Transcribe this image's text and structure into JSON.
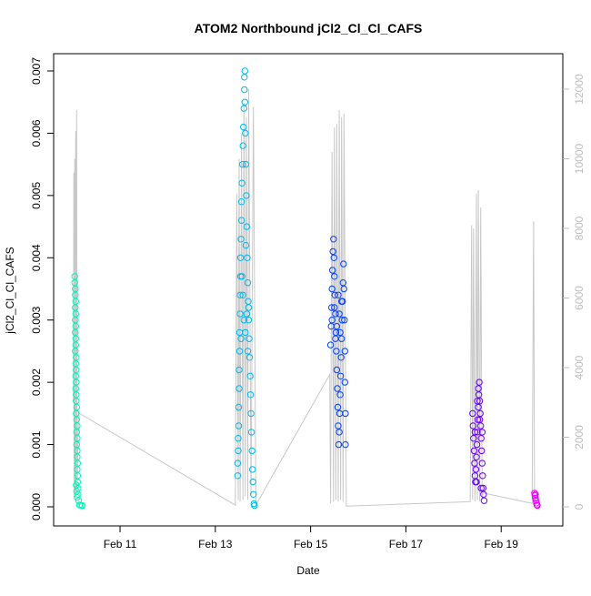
{
  "chart_data": {
    "type": "scatter",
    "title": "ATOM2 Northbound jCl2_Cl_Cl_CAFS",
    "xlabel": "Date",
    "ylabel": "jCl2_Cl_Cl_CAFS",
    "x_unit": "days since Feb 9 00:00 (axis printed as dates)",
    "xlim": [
      9.95,
      19.95
    ],
    "ylim": [
      0.0,
      0.007
    ],
    "y2lim": [
      0,
      12000
    ],
    "x_ticks": [
      {
        "x": 11,
        "label": "Feb 11"
      },
      {
        "x": 13,
        "label": "Feb 13"
      },
      {
        "x": 15,
        "label": "Feb 15"
      },
      {
        "x": 17,
        "label": "Feb 17"
      },
      {
        "x": 19,
        "label": "Feb 19"
      }
    ],
    "y_ticks": [
      {
        "value": 0.0,
        "label": "0.000"
      },
      {
        "value": 0.001,
        "label": "0.001"
      },
      {
        "value": 0.002,
        "label": "0.002"
      },
      {
        "value": 0.003,
        "label": "0.003"
      },
      {
        "value": 0.004,
        "label": "0.004"
      },
      {
        "value": 0.005,
        "label": "0.005"
      },
      {
        "value": 0.006,
        "label": "0.006"
      },
      {
        "value": 0.007,
        "label": "0.007"
      }
    ],
    "y2_ticks": [
      {
        "value": 0,
        "label": "0"
      },
      {
        "value": 2000,
        "label": "2000"
      },
      {
        "value": 4000,
        "label": "4000"
      },
      {
        "value": 6000,
        "label": "6000"
      },
      {
        "value": 8000,
        "label": "8000"
      },
      {
        "value": 10000,
        "label": "10000"
      },
      {
        "value": 12000,
        "label": "12000"
      }
    ],
    "grid": false,
    "series": [
      {
        "color": "#00f5b8",
        "points": [
          [
            10.05,
            0.0037
          ],
          [
            10.05,
            0.0036
          ],
          [
            10.06,
            0.0035
          ],
          [
            10.06,
            0.0034
          ],
          [
            10.07,
            0.0033
          ],
          [
            10.06,
            0.0032
          ],
          [
            10.07,
            0.0031
          ],
          [
            10.06,
            0.003
          ],
          [
            10.07,
            0.0029
          ],
          [
            10.06,
            0.0028
          ],
          [
            10.07,
            0.0027
          ],
          [
            10.07,
            0.0026
          ],
          [
            10.06,
            0.0025
          ],
          [
            10.08,
            0.0024
          ],
          [
            10.07,
            0.0023
          ],
          [
            10.08,
            0.0022
          ],
          [
            10.07,
            0.0021
          ],
          [
            10.08,
            0.002
          ],
          [
            10.07,
            0.0019
          ],
          [
            10.08,
            0.0018
          ],
          [
            10.08,
            0.0017
          ],
          [
            10.09,
            0.0016
          ],
          [
            10.08,
            0.0015
          ],
          [
            10.09,
            0.0014
          ],
          [
            10.1,
            0.0013
          ],
          [
            10.09,
            0.0012
          ],
          [
            10.1,
            0.0011
          ],
          [
            10.09,
            0.001
          ],
          [
            10.1,
            0.0009
          ],
          [
            10.1,
            0.0008
          ],
          [
            10.11,
            0.0007
          ],
          [
            10.1,
            0.0006
          ],
          [
            10.11,
            0.0005
          ],
          [
            10.11,
            0.0004
          ],
          [
            10.12,
            0.0003
          ],
          [
            10.12,
            0.0002
          ],
          [
            10.13,
            0.0001
          ],
          [
            10.15,
            3e-05
          ],
          [
            10.18,
            2e-05
          ],
          [
            10.21,
            2e-05
          ],
          [
            10.08,
            0.00035
          ],
          [
            10.09,
            0.00025
          ],
          [
            10.1,
            0.00015
          ]
        ]
      },
      {
        "color": "#00b8f0",
        "points": [
          [
            13.47,
            0.0005
          ],
          [
            13.47,
            0.0007
          ],
          [
            13.48,
            0.0009
          ],
          [
            13.48,
            0.0011
          ],
          [
            13.49,
            0.0013
          ],
          [
            13.49,
            0.0016
          ],
          [
            13.5,
            0.0019
          ],
          [
            13.5,
            0.0022
          ],
          [
            13.51,
            0.0025
          ],
          [
            13.51,
            0.0028
          ],
          [
            13.52,
            0.0031
          ],
          [
            13.52,
            0.0034
          ],
          [
            13.53,
            0.0037
          ],
          [
            13.53,
            0.004
          ],
          [
            13.54,
            0.0043
          ],
          [
            13.55,
            0.0046
          ],
          [
            13.55,
            0.0049
          ],
          [
            13.56,
            0.0052
          ],
          [
            13.57,
            0.0055
          ],
          [
            13.58,
            0.0058
          ],
          [
            13.59,
            0.0061
          ],
          [
            13.6,
            0.0064
          ],
          [
            13.61,
            0.0067
          ],
          [
            13.62,
            0.007
          ],
          [
            13.61,
            0.0069
          ],
          [
            13.62,
            0.0065
          ],
          [
            13.63,
            0.006
          ],
          [
            13.64,
            0.0055
          ],
          [
            13.65,
            0.005
          ],
          [
            13.66,
            0.0045
          ],
          [
            13.67,
            0.004
          ],
          [
            13.68,
            0.0036
          ],
          [
            13.69,
            0.0033
          ],
          [
            13.7,
            0.003
          ],
          [
            13.71,
            0.0027
          ],
          [
            13.72,
            0.0024
          ],
          [
            13.73,
            0.0021
          ],
          [
            13.74,
            0.0018
          ],
          [
            13.75,
            0.0015
          ],
          [
            13.76,
            0.0012
          ],
          [
            13.77,
            0.0009
          ],
          [
            13.78,
            0.0006
          ],
          [
            13.79,
            0.0004
          ],
          [
            13.8,
            0.0002
          ],
          [
            13.81,
            5e-05
          ],
          [
            13.82,
            2e-05
          ],
          [
            13.6,
            0.003
          ],
          [
            13.58,
            0.0034
          ],
          [
            13.63,
            0.0028
          ],
          [
            13.66,
            0.0031
          ],
          [
            13.7,
            0.0032
          ],
          [
            13.56,
            0.0037
          ],
          [
            13.54,
            0.0027
          ],
          [
            13.64,
            0.0042
          ],
          [
            13.68,
            0.0025
          ]
        ]
      },
      {
        "color": "#0040ff",
        "points": [
          [
            15.42,
            0.0026
          ],
          [
            15.43,
            0.0029
          ],
          [
            15.44,
            0.0032
          ],
          [
            15.45,
            0.0035
          ],
          [
            15.46,
            0.0038
          ],
          [
            15.47,
            0.0041
          ],
          [
            15.48,
            0.0043
          ],
          [
            15.49,
            0.004
          ],
          [
            15.5,
            0.0037
          ],
          [
            15.51,
            0.0034
          ],
          [
            15.52,
            0.0031
          ],
          [
            15.53,
            0.0028
          ],
          [
            15.54,
            0.0025
          ],
          [
            15.55,
            0.0022
          ],
          [
            15.56,
            0.0019
          ],
          [
            15.57,
            0.0016
          ],
          [
            15.58,
            0.0013
          ],
          [
            15.59,
            0.001
          ],
          [
            15.6,
            0.0012
          ],
          [
            15.61,
            0.0015
          ],
          [
            15.62,
            0.0018
          ],
          [
            15.63,
            0.0021
          ],
          [
            15.64,
            0.0024
          ],
          [
            15.65,
            0.0027
          ],
          [
            15.66,
            0.003
          ],
          [
            15.67,
            0.0033
          ],
          [
            15.68,
            0.0036
          ],
          [
            15.69,
            0.0039
          ],
          [
            15.7,
            0.0035
          ],
          [
            15.71,
            0.003
          ],
          [
            15.72,
            0.0025
          ],
          [
            15.72,
            0.002
          ],
          [
            15.73,
            0.0015
          ],
          [
            15.73,
            0.001
          ],
          [
            15.45,
            0.003
          ],
          [
            15.5,
            0.0032
          ],
          [
            15.55,
            0.0029
          ],
          [
            15.6,
            0.0031
          ],
          [
            15.65,
            0.0033
          ],
          [
            15.52,
            0.0027
          ],
          [
            15.58,
            0.0034
          ],
          [
            15.62,
            0.0028
          ]
        ]
      },
      {
        "color": "#6600ff",
        "points": [
          [
            18.4,
            0.0015
          ],
          [
            18.41,
            0.0013
          ],
          [
            18.42,
            0.0011
          ],
          [
            18.43,
            0.0009
          ],
          [
            18.44,
            0.0007
          ],
          [
            18.45,
            0.0005
          ],
          [
            18.46,
            0.0004
          ],
          [
            18.47,
            0.0006
          ],
          [
            18.48,
            0.0008
          ],
          [
            18.49,
            0.001
          ],
          [
            18.5,
            0.0012
          ],
          [
            18.51,
            0.0014
          ],
          [
            18.52,
            0.0016
          ],
          [
            18.53,
            0.0018
          ],
          [
            18.54,
            0.002
          ],
          [
            18.52,
            0.0019
          ],
          [
            18.55,
            0.0017
          ],
          [
            18.56,
            0.0015
          ],
          [
            18.57,
            0.0013
          ],
          [
            18.58,
            0.0011
          ],
          [
            18.59,
            0.0009
          ],
          [
            18.6,
            0.0007
          ],
          [
            18.61,
            0.0005
          ],
          [
            18.62,
            0.0003
          ],
          [
            18.63,
            0.0002
          ],
          [
            18.64,
            0.0001
          ],
          [
            18.45,
            0.0012
          ],
          [
            18.5,
            0.0017
          ],
          [
            18.55,
            0.0014
          ],
          [
            18.6,
            0.0012
          ],
          [
            18.48,
            0.0004
          ],
          [
            18.58,
            0.0003
          ]
        ]
      },
      {
        "color": "#ee00ff",
        "points": [
          [
            19.7,
            0.00022
          ],
          [
            19.71,
            0.00018
          ],
          [
            19.72,
            0.00014
          ],
          [
            19.73,
            0.0001
          ],
          [
            19.74,
            6e-05
          ],
          [
            19.75,
            3e-05
          ],
          [
            19.76,
            2e-05
          ],
          [
            19.72,
            0.0002
          ]
        ]
      }
    ],
    "secondary_line": {
      "color": "#c8c8c8",
      "axis": "right",
      "points": [
        [
          10.02,
          3000
        ],
        [
          10.03,
          9600
        ],
        [
          10.04,
          300
        ],
        [
          10.05,
          10000
        ],
        [
          10.06,
          200
        ],
        [
          10.07,
          10800
        ],
        [
          10.08,
          500
        ],
        [
          10.09,
          11400
        ],
        [
          10.1,
          400
        ],
        [
          10.13,
          2700
        ],
        [
          13.42,
          50
        ],
        [
          13.45,
          9000
        ],
        [
          13.48,
          200
        ],
        [
          13.5,
          10000
        ],
        [
          13.52,
          150
        ],
        [
          13.55,
          10700
        ],
        [
          13.58,
          200
        ],
        [
          13.6,
          11600
        ],
        [
          13.63,
          300
        ],
        [
          13.65,
          11200
        ],
        [
          13.68,
          200
        ],
        [
          13.7,
          12000
        ],
        [
          13.75,
          300
        ],
        [
          13.8,
          11500
        ],
        [
          13.85,
          50
        ],
        [
          15.4,
          3800
        ],
        [
          15.42,
          100
        ],
        [
          15.45,
          10200
        ],
        [
          15.48,
          150
        ],
        [
          15.5,
          10900
        ],
        [
          15.53,
          200
        ],
        [
          15.55,
          11000
        ],
        [
          15.58,
          150
        ],
        [
          15.6,
          11400
        ],
        [
          15.63,
          200
        ],
        [
          15.65,
          11200
        ],
        [
          15.68,
          150
        ],
        [
          15.7,
          11300
        ],
        [
          15.75,
          20
        ],
        [
          18.35,
          150
        ],
        [
          18.38,
          8100
        ],
        [
          18.4,
          200
        ],
        [
          18.42,
          8000
        ],
        [
          18.45,
          150
        ],
        [
          18.48,
          9000
        ],
        [
          18.5,
          200
        ],
        [
          18.52,
          9100
        ],
        [
          18.55,
          150
        ],
        [
          18.57,
          8600
        ],
        [
          18.6,
          200
        ],
        [
          18.62,
          400
        ],
        [
          19.65,
          100
        ],
        [
          19.68,
          8200
        ],
        [
          19.7,
          200
        ],
        [
          19.72,
          300
        ]
      ]
    }
  }
}
